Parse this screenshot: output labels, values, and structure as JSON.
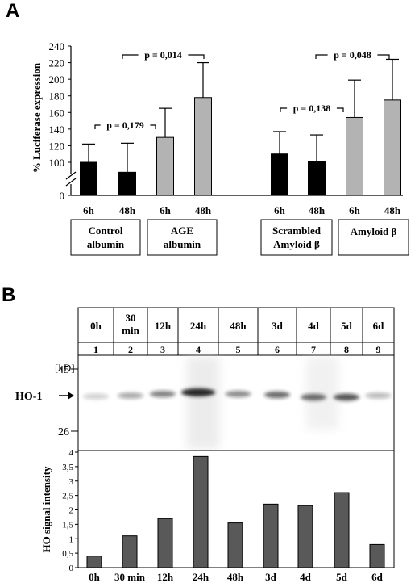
{
  "panel_a": {
    "letter": "A",
    "ylabel": "% Luciferase expression",
    "ticks": [
      "0",
      "100",
      "120",
      "140",
      "160",
      "180",
      "200",
      "220",
      "240"
    ],
    "groups": [
      {
        "label_lines": [
          "Control",
          "albumin"
        ]
      },
      {
        "label_lines": [
          "AGE",
          "albumin"
        ]
      },
      {
        "label_lines": [
          "Scrambled",
          "Amyloid β"
        ]
      },
      {
        "label_lines": [
          "Amyloid β"
        ]
      }
    ],
    "pvalues": [
      "p = 0,179",
      "p = 0,014",
      "p = 0,138",
      "p = 0,048"
    ]
  },
  "panel_b": {
    "letter": "B",
    "timepoints": [
      "0h",
      "30 min",
      "12h",
      "24h",
      "48h",
      "3d",
      "4d",
      "5d",
      "6d"
    ],
    "timepoint_header_row1": [
      "0h",
      "30",
      "12h",
      "24h",
      "48h",
      "3d",
      "4d",
      "5d",
      "6d"
    ],
    "timepoint_header_row2": [
      "",
      "min",
      "",
      "",
      "",
      "",
      "",
      "",
      ""
    ],
    "lanes": [
      "1",
      "2",
      "3",
      "4",
      "5",
      "6",
      "7",
      "8",
      "9"
    ],
    "kd_label": "[kD]",
    "marker_45": "45",
    "marker_26": "26",
    "band_label": "HO-1",
    "ylabel": "HO signal intensity",
    "ticks": [
      "0",
      "0,5",
      "1",
      "1,5",
      "2",
      "2,5",
      "3",
      "3,5",
      "4"
    ]
  },
  "chart_data": [
    {
      "type": "bar",
      "ylabel": "% Luciferase expression",
      "ylim": [
        0,
        240
      ],
      "axis_break": true,
      "categories": [
        "6h",
        "48h",
        "6h",
        "48h",
        "6h",
        "48h",
        "6h",
        "48h"
      ],
      "values": [
        100,
        88,
        130,
        178,
        110,
        101,
        154,
        175
      ],
      "error_upper": [
        122,
        123,
        165,
        220,
        137,
        133,
        199,
        224
      ],
      "bar_colors": [
        "#000000",
        "#000000",
        "#b3b3b3",
        "#b3b3b3",
        "#000000",
        "#000000",
        "#b3b3b3",
        "#b3b3b3"
      ],
      "grid": false
    },
    {
      "type": "bar",
      "ylabel": "HO signal intensity",
      "ylim": [
        0,
        4
      ],
      "categories": [
        "0h",
        "30 min",
        "12h",
        "24h",
        "48h",
        "3d",
        "4d",
        "5d",
        "6d"
      ],
      "values": [
        0.4,
        1.1,
        1.7,
        3.85,
        1.55,
        2.2,
        2.15,
        2.6,
        0.8
      ],
      "bar_color": "#595959",
      "grid": false
    }
  ]
}
